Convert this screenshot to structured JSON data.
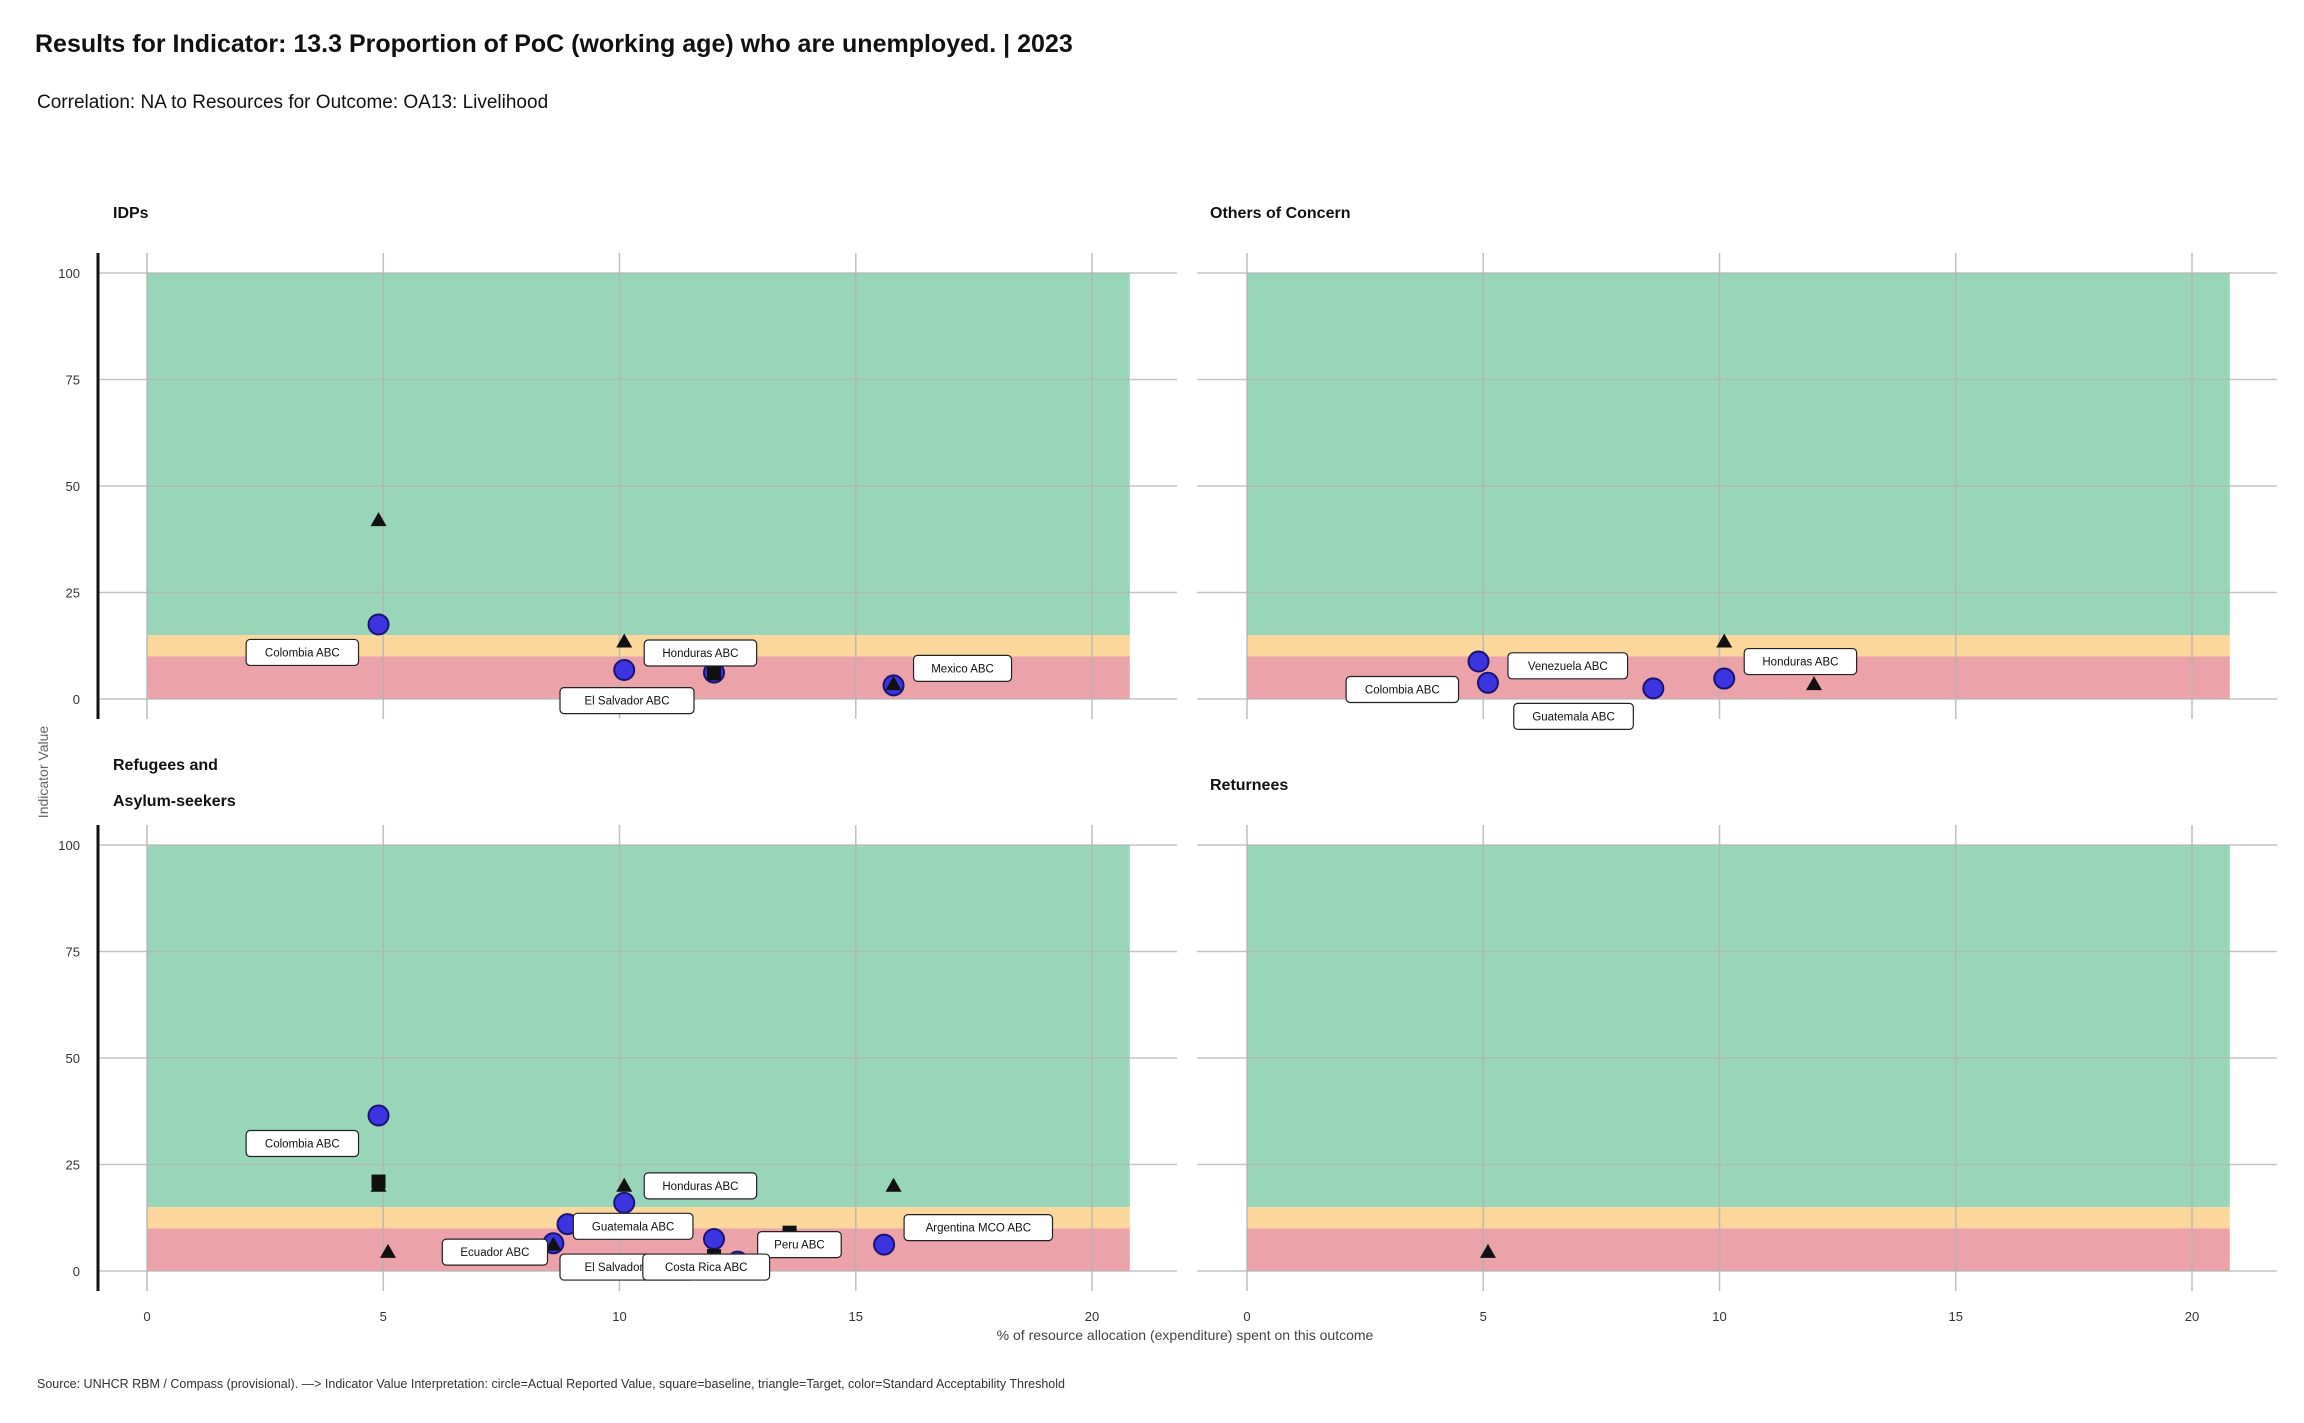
{
  "title": "Results  for Indicator:  13.3 Proportion  of PoC  (working  age)  who are unemployed.  |  2023",
  "subtitle": "Correlation: NA  to Resources for Outcome: OA13: Livelihood",
  "caption": "Source:  UNHCR RBM  /  Compass (provisional).  —> Indicator  Value Interpretation:  circle=Actual Reported  Value,  square=baseline,  triangle=Target, color=Standard  Acceptability  Threshold",
  "colors": {
    "band_green": "#99d6b9",
    "band_yellow": "#fcd79b",
    "band_red": "#eba3a9",
    "marker_actual": "#3b34e0",
    "marker_stroke": "#1a1470",
    "grid": "#b3b3b3"
  },
  "chart_data": {
    "type": "scatter",
    "xlabel": "% of resource allocation (expenditure) spent on this outcome",
    "ylabel": "Indicator Value",
    "xlim": [
      0,
      20.8
    ],
    "ylim": [
      0,
      100
    ],
    "x_ticks": [
      0,
      5,
      10,
      15,
      20
    ],
    "y_ticks": [
      0,
      25,
      50,
      75,
      100
    ],
    "thresholds": {
      "red_max": 10,
      "yellow_max": 15,
      "green_max": 100
    },
    "legend": "none",
    "panels": [
      {
        "name": "IDPs",
        "points": [
          {
            "label": "Colombia ABC",
            "x": 4.9,
            "actual": 17.5,
            "baseline": null,
            "target": 42
          },
          {
            "label": "Honduras ABC",
            "x": 10.1,
            "actual": 6.8,
            "baseline": null,
            "target": 13.5
          },
          {
            "label": "El Salvador ABC",
            "x": 12.0,
            "actual": 6.2,
            "baseline": 6.0,
            "target": null
          },
          {
            "label": "Mexico ABC",
            "x": 15.8,
            "actual": 3.2,
            "baseline": null,
            "target": 3.5
          }
        ]
      },
      {
        "name": "Others of Concern",
        "points": [
          {
            "label": "Colombia ABC",
            "x": 4.9,
            "actual": 8.8,
            "baseline": null,
            "target": null
          },
          {
            "label": "Venezuela ABC",
            "x": 5.1,
            "actual": 3.8,
            "baseline": null,
            "target": null
          },
          {
            "label": "Guatemala ABC",
            "x": 8.6,
            "actual": 2.5,
            "baseline": null,
            "target": null
          },
          {
            "label": "Honduras ABC",
            "x": 10.1,
            "actual": 4.8,
            "baseline": null,
            "target": 13.5
          },
          {
            "label": "",
            "x": 12.0,
            "actual": null,
            "baseline": null,
            "target": 3.5
          }
        ]
      },
      {
        "name": "Refugees and\nAsylum-seekers",
        "points": [
          {
            "label": "Colombia ABC",
            "x": 4.9,
            "actual": 36.5,
            "baseline": 21,
            "target": 20
          },
          {
            "label": "Guatemala ABC",
            "x": 8.6,
            "actual": 6.5,
            "baseline": null,
            "target": 6.2
          },
          {
            "label": "Ecuador ABC",
            "x": 8.9,
            "actual": 11.0,
            "baseline": null,
            "target": null
          },
          {
            "label": "Honduras ABC",
            "x": 10.1,
            "actual": 16.0,
            "baseline": null,
            "target": 20
          },
          {
            "label": "El Salvador ABC",
            "x": 12.0,
            "actual": 7.5,
            "baseline": 3.5,
            "target": 3.5
          },
          {
            "label": "Peru ABC",
            "x": 12.5,
            "actual": 2.2,
            "baseline": null,
            "target": null
          },
          {
            "label": "Costa Rica ABC",
            "x": 13.6,
            "actual": 7.5,
            "baseline": 9.0,
            "target": 8.5
          },
          {
            "label": "Argentina MCO ABC",
            "x": 15.6,
            "actual": 6.2,
            "baseline": null,
            "target": null
          },
          {
            "label": "",
            "x": 5.1,
            "actual": null,
            "baseline": null,
            "target": 4.5
          },
          {
            "label": "",
            "x": 15.8,
            "actual": null,
            "baseline": null,
            "target": 20
          }
        ]
      },
      {
        "name": "Returnees",
        "points": [
          {
            "label": "",
            "x": 5.1,
            "actual": null,
            "baseline": null,
            "target": 4.5
          }
        ]
      }
    ]
  }
}
